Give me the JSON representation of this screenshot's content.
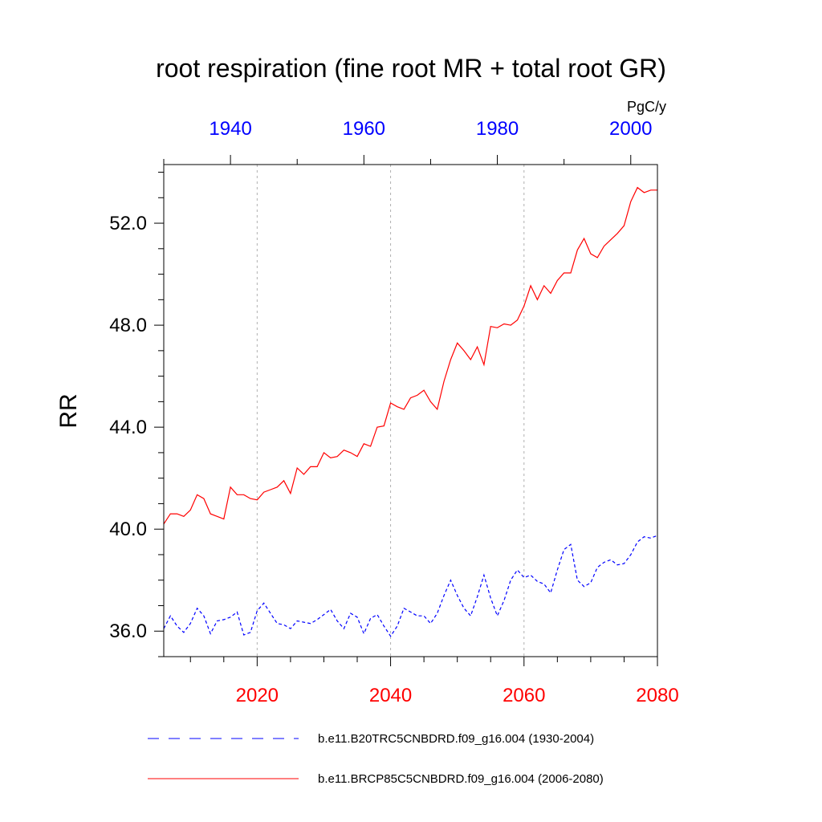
{
  "chart_data": {
    "type": "line",
    "title": "root respiration (fine root MR + total root GR)",
    "ylabel": "RR",
    "units": "PgC/y",
    "xlim_bottom": [
      2006,
      2080
    ],
    "xlim_top": [
      1930,
      2004
    ],
    "ylim": [
      35.0,
      54.3
    ],
    "y_ticks": [
      "36.0",
      "40.0",
      "44.0",
      "48.0",
      "52.0"
    ],
    "bottom_x_ticks": [
      "2020",
      "2040",
      "2060",
      "2080"
    ],
    "top_x_ticks": [
      "1940",
      "1960",
      "1980",
      "2000"
    ],
    "grid": "vertical dashed lines at bottom-axis major ticks",
    "legend_position": "bottom",
    "colors": {
      "historical": "#0000ff",
      "future": "#ff0000",
      "grid": "#b0b0b0"
    },
    "series": [
      {
        "name": "b.e11.B20TRC5CNBDRD.f09_g16.004 (1930-2004)",
        "axis": "top",
        "style": "dashed",
        "color": "#0000ff",
        "x": [
          1930,
          1931,
          1932,
          1933,
          1934,
          1935,
          1936,
          1937,
          1938,
          1939,
          1940,
          1941,
          1942,
          1943,
          1944,
          1945,
          1946,
          1947,
          1948,
          1949,
          1950,
          1951,
          1952,
          1953,
          1954,
          1955,
          1956,
          1957,
          1958,
          1959,
          1960,
          1961,
          1962,
          1963,
          1964,
          1965,
          1966,
          1967,
          1968,
          1969,
          1970,
          1971,
          1972,
          1973,
          1974,
          1975,
          1976,
          1977,
          1978,
          1979,
          1980,
          1981,
          1982,
          1983,
          1984,
          1985,
          1986,
          1987,
          1988,
          1989,
          1990,
          1991,
          1992,
          1993,
          1994,
          1995,
          1996,
          1997,
          1998,
          1999,
          2000,
          2001,
          2002,
          2003,
          2004
        ],
        "values": [
          36.1,
          36.6,
          36.2,
          35.95,
          36.3,
          36.9,
          36.6,
          35.9,
          36.4,
          36.45,
          36.55,
          36.75,
          35.85,
          35.95,
          36.8,
          37.1,
          36.7,
          36.3,
          36.25,
          36.1,
          36.4,
          36.35,
          36.3,
          36.45,
          36.65,
          36.85,
          36.4,
          36.1,
          36.7,
          36.55,
          35.9,
          36.5,
          36.65,
          36.2,
          35.8,
          36.2,
          36.9,
          36.75,
          36.6,
          36.6,
          36.3,
          36.7,
          37.4,
          38.0,
          37.4,
          36.9,
          36.6,
          37.35,
          38.2,
          37.3,
          36.6,
          37.2,
          38.0,
          38.4,
          38.1,
          38.2,
          37.95,
          37.85,
          37.5,
          38.4,
          39.2,
          39.4,
          38.0,
          37.75,
          37.9,
          38.5,
          38.7,
          38.8,
          38.6,
          38.65,
          39.0,
          39.5,
          39.7,
          39.65,
          39.75
        ]
      },
      {
        "name": "b.e11.BRCP85C5CNBDRD.f09_g16.004 (2006-2080)",
        "axis": "bottom",
        "style": "solid",
        "color": "#ff0000",
        "x": [
          2006,
          2007,
          2008,
          2009,
          2010,
          2011,
          2012,
          2013,
          2014,
          2015,
          2016,
          2017,
          2018,
          2019,
          2020,
          2021,
          2022,
          2023,
          2024,
          2025,
          2026,
          2027,
          2028,
          2029,
          2030,
          2031,
          2032,
          2033,
          2034,
          2035,
          2036,
          2037,
          2038,
          2039,
          2040,
          2041,
          2042,
          2043,
          2044,
          2045,
          2046,
          2047,
          2048,
          2049,
          2050,
          2051,
          2052,
          2053,
          2054,
          2055,
          2056,
          2057,
          2058,
          2059,
          2060,
          2061,
          2062,
          2063,
          2064,
          2065,
          2066,
          2067,
          2068,
          2069,
          2070,
          2071,
          2072,
          2073,
          2074,
          2075,
          2076,
          2077,
          2078,
          2079,
          2080
        ],
        "values": [
          40.2,
          40.6,
          40.6,
          40.5,
          40.75,
          41.35,
          41.2,
          40.6,
          40.5,
          40.4,
          41.65,
          41.35,
          41.35,
          41.2,
          41.15,
          41.45,
          41.55,
          41.65,
          41.9,
          41.4,
          42.4,
          42.15,
          42.45,
          42.45,
          43.0,
          42.8,
          42.85,
          43.1,
          43.0,
          42.85,
          43.35,
          43.25,
          44.0,
          44.05,
          44.95,
          44.8,
          44.7,
          45.15,
          45.25,
          45.45,
          45.0,
          44.7,
          45.8,
          46.65,
          47.3,
          47.0,
          46.65,
          47.15,
          46.45,
          47.95,
          47.9,
          48.05,
          48.0,
          48.2,
          48.75,
          49.55,
          49.0,
          49.55,
          49.25,
          49.75,
          50.05,
          50.05,
          50.95,
          51.4,
          50.8,
          50.65,
          51.1,
          51.35,
          51.6,
          51.9,
          52.85,
          53.4,
          53.2,
          53.3,
          53.3
        ]
      }
    ]
  }
}
